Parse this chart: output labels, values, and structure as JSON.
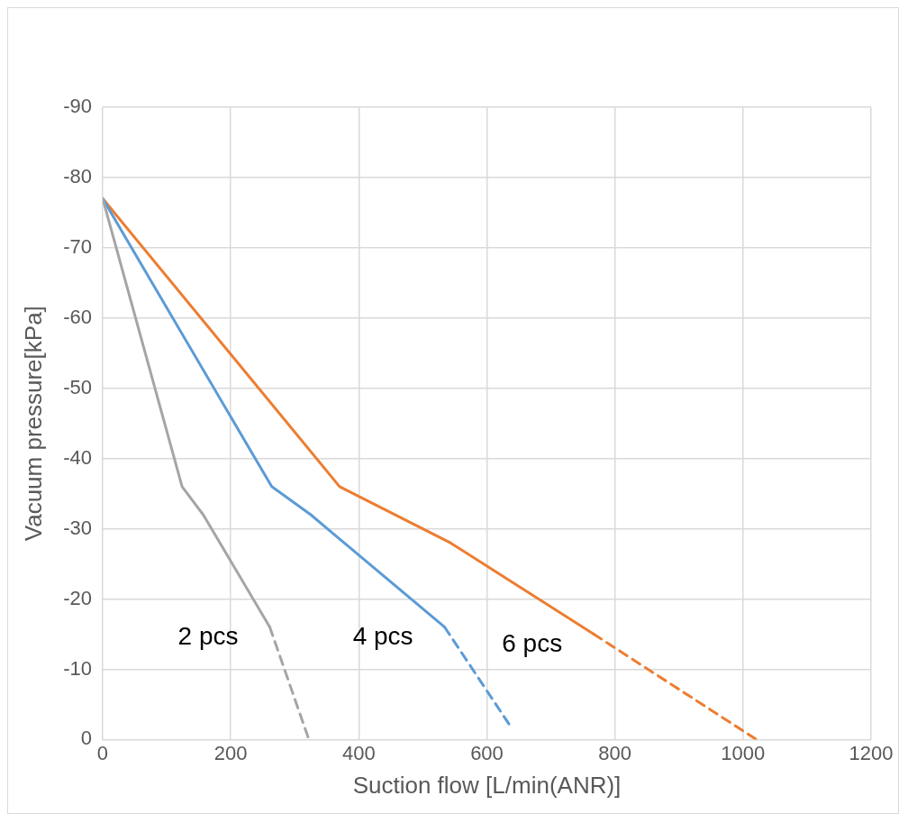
{
  "chart_data": {
    "type": "line",
    "xlabel": "Suction flow [L/min(ANR)]",
    "ylabel": "Vacuum pressure[kPa]",
    "xlim": [
      0,
      1200
    ],
    "xticks": [
      0,
      200,
      400,
      600,
      800,
      1000,
      1200
    ],
    "ylim": [
      0,
      -90
    ],
    "yticks": [
      0,
      -10,
      -20,
      -30,
      -40,
      -50,
      -60,
      -70,
      -80,
      -90
    ],
    "grid": true,
    "legend": false,
    "marker": "none",
    "series": [
      {
        "name": "2 pcs",
        "color": "#a5a5a5",
        "line_style": "solid",
        "x": [
          0,
          124,
          157,
          261
        ],
        "values": [
          -77,
          -36,
          -32,
          -16
        ]
      },
      {
        "color": "#a5a5a5",
        "line_style": "dashed",
        "x": [
          261,
          322
        ],
        "values": [
          -16,
          0
        ]
      },
      {
        "name": "4 pcs",
        "color": "#5b9bd5",
        "line_style": "solid",
        "x": [
          0,
          264,
          325,
          351,
          534
        ],
        "values": [
          -77,
          -36,
          -32,
          -30,
          -16
        ]
      },
      {
        "color": "#5b9bd5",
        "line_style": "dashed",
        "x": [
          534,
          636
        ],
        "values": [
          -16,
          -2
        ]
      },
      {
        "name": "6 pcs",
        "color": "#ed7d31",
        "line_style": "solid",
        "x": [
          0,
          370,
          543,
          767
        ],
        "values": [
          -77,
          -36,
          -28,
          -15
        ]
      },
      {
        "color": "#ed7d31",
        "line_style": "dashed",
        "x": [
          767,
          1021
        ],
        "values": [
          -15,
          0
        ]
      }
    ]
  }
}
